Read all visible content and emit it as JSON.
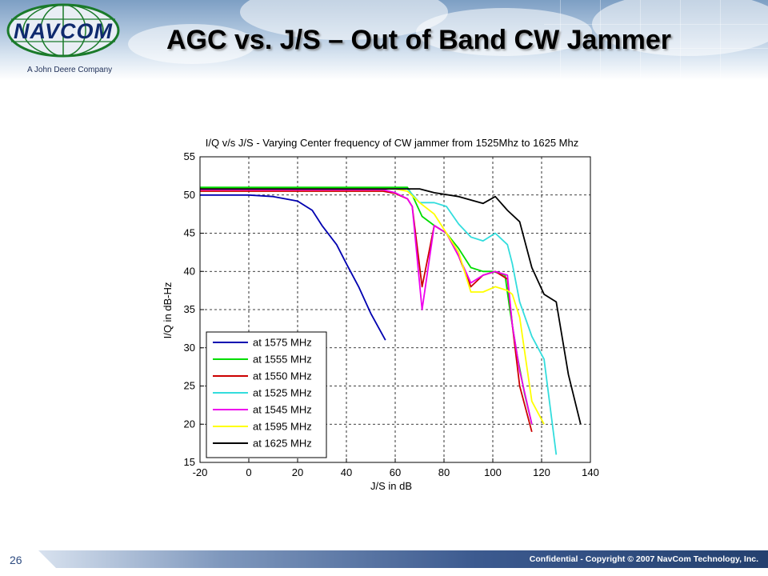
{
  "slide": {
    "title": "AGC vs. J/S – Out of Band CW Jammer",
    "logo_text": "NAVCOM",
    "logo_subtitle": "A John Deere Company",
    "footer": "Confidential - Copyright © 2007 NavCom Technology, Inc.",
    "page_number": "26"
  },
  "chart_data": {
    "type": "line",
    "title": "I/Q v/s J/S - Varying Center frequency of CW jammer from 1525Mhz to 1625 Mhz",
    "xlabel": "J/S in dB",
    "ylabel": "I/Q in dB-Hz",
    "xlim": [
      -20,
      140
    ],
    "ylim": [
      15,
      55
    ],
    "xticks": [
      -20,
      0,
      20,
      40,
      60,
      80,
      100,
      120,
      140
    ],
    "yticks": [
      15,
      20,
      25,
      30,
      35,
      40,
      45,
      50,
      55
    ],
    "grid": true,
    "legend_position": "bottom-left",
    "series": [
      {
        "name": "at 1575 MHz",
        "color": "#0000b0",
        "x": [
          -20,
          0,
          10,
          20,
          26,
          30,
          36,
          40,
          45,
          50,
          56
        ],
        "y": [
          50,
          50,
          49.8,
          49.2,
          48,
          46,
          43.5,
          41,
          38,
          34.5,
          31
        ]
      },
      {
        "name": "at 1555 MHz",
        "color": "#00dd00",
        "x": [
          -20,
          60,
          65,
          67,
          71,
          76,
          81,
          86,
          91,
          96,
          100,
          105,
          107,
          110,
          113,
          116
        ],
        "y": [
          51,
          51,
          51,
          50,
          47.2,
          46,
          45,
          43,
          40.5,
          40,
          40,
          39.5,
          35,
          29,
          24,
          20
        ]
      },
      {
        "name": "at 1550 MHz",
        "color": "#cc0000",
        "x": [
          -20,
          55,
          60,
          65,
          67,
          71,
          76,
          81,
          86,
          91,
          96,
          101,
          106,
          108,
          111,
          116
        ],
        "y": [
          50.5,
          50.5,
          50.2,
          49.5,
          48.5,
          38,
          46,
          45,
          42,
          38,
          39.5,
          40,
          39,
          33,
          25,
          19
        ]
      },
      {
        "name": "at 1525 MHz",
        "color": "#33dddd",
        "x": [
          -20,
          65,
          70,
          76,
          81,
          86,
          91,
          96,
          101,
          106,
          108,
          111,
          116,
          121,
          126
        ],
        "y": [
          50.8,
          50.8,
          49,
          49,
          48.5,
          46.2,
          44.5,
          44,
          45,
          43.5,
          41,
          36,
          31.5,
          28.5,
          16
        ]
      },
      {
        "name": "at 1545 MHz",
        "color": "#ee00ee",
        "x": [
          -20,
          55,
          60,
          65,
          67,
          71,
          76,
          81,
          86,
          91,
          96,
          101,
          106,
          108,
          111,
          116
        ],
        "y": [
          50.7,
          50.7,
          50.3,
          49.5,
          48.5,
          35,
          46,
          45,
          42,
          38.5,
          39.5,
          40,
          39.5,
          33,
          27,
          20
        ]
      },
      {
        "name": "at 1595 MHz",
        "color": "#ffff00",
        "x": [
          -20,
          60,
          65,
          70,
          76,
          81,
          86,
          91,
          96,
          101,
          106,
          108,
          111,
          116,
          121
        ],
        "y": [
          50.8,
          50.8,
          50.5,
          49,
          47.5,
          45,
          42.5,
          37.3,
          37.3,
          38,
          37.5,
          37,
          34,
          23,
          20
        ]
      },
      {
        "name": "at 1625 MHz",
        "color": "#000000",
        "x": [
          -20,
          70,
          76,
          86,
          96,
          101,
          106,
          111,
          116,
          121,
          126,
          131,
          136
        ],
        "y": [
          50.8,
          50.8,
          50.3,
          49.8,
          48.9,
          49.8,
          48,
          46.5,
          40.5,
          37,
          36,
          26.5,
          20
        ]
      }
    ]
  }
}
